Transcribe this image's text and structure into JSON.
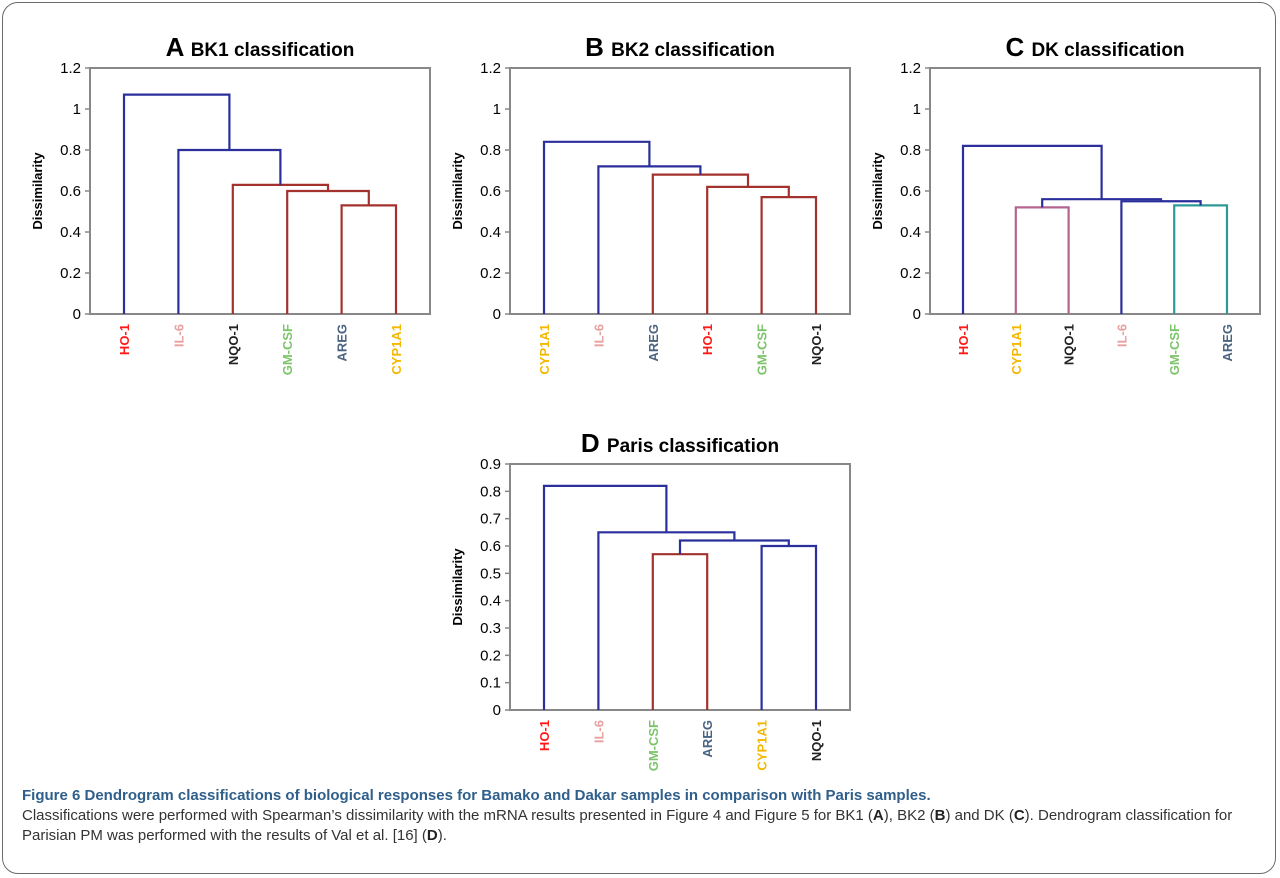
{
  "colors": {
    "blue": "#2b2f9b",
    "red": "#a3322e",
    "pink": "#b5648f",
    "teal": "#2e9a98",
    "HO-1": "#ff1a1a",
    "IL-6": "#e8a0a0",
    "NQO-1": "#222222",
    "GM-CSF": "#7cc46a",
    "AREG": "#4a6380",
    "CYP1A1": "#f5b800"
  },
  "chart_data": [
    {
      "type": "dendrogram",
      "letter": "A",
      "title": "BK1 classification",
      "ylabel": "Dissimilarity",
      "ylim": [
        0,
        1.2
      ],
      "yticks": [
        {
          "value": 0,
          "label": "0"
        },
        {
          "value": 0.2,
          "label": "0.2"
        },
        {
          "value": 0.4,
          "label": "0.4"
        },
        {
          "value": 0.6,
          "label": "0.6"
        },
        {
          "value": 0.8,
          "label": "0.8"
        },
        {
          "value": 1,
          "label": "1"
        },
        {
          "value": 1.2,
          "label": "1.2"
        }
      ],
      "leaves": [
        "HO-1",
        "IL-6",
        "NQO-1",
        "GM-CSF",
        "AREG",
        "CYP1A1"
      ],
      "merges": [
        {
          "left": 4,
          "right": 5,
          "height": 0.53,
          "color": "red"
        },
        {
          "left": 3,
          "right": 6,
          "height": 0.6,
          "color": "red"
        },
        {
          "left": 2,
          "right": 7,
          "height": 0.63,
          "color": "red"
        },
        {
          "left": 1,
          "right": 8,
          "height": 0.8,
          "color": "blue"
        },
        {
          "left": 0,
          "right": 9,
          "height": 1.07,
          "color": "blue"
        }
      ]
    },
    {
      "type": "dendrogram",
      "letter": "B",
      "title": "BK2 classification",
      "ylabel": "Dissimilarity",
      "ylim": [
        0,
        1.2
      ],
      "yticks": [
        {
          "value": 0,
          "label": "0"
        },
        {
          "value": 0.2,
          "label": "0.2"
        },
        {
          "value": 0.4,
          "label": "0.4"
        },
        {
          "value": 0.6,
          "label": "0.6"
        },
        {
          "value": 0.8,
          "label": "0.8"
        },
        {
          "value": 1,
          "label": "1"
        },
        {
          "value": 1.2,
          "label": "1.2"
        }
      ],
      "leaves": [
        "CYP1A1",
        "IL-6",
        "AREG",
        "HO-1",
        "GM-CSF",
        "NQO-1"
      ],
      "merges": [
        {
          "left": 4,
          "right": 5,
          "height": 0.57,
          "color": "red"
        },
        {
          "left": 3,
          "right": 6,
          "height": 0.62,
          "color": "red"
        },
        {
          "left": 2,
          "right": 7,
          "height": 0.68,
          "color": "red"
        },
        {
          "left": 1,
          "right": 8,
          "height": 0.72,
          "color": "blue"
        },
        {
          "left": 0,
          "right": 9,
          "height": 0.84,
          "color": "blue"
        }
      ]
    },
    {
      "type": "dendrogram",
      "letter": "C",
      "title": "DK classification",
      "ylabel": "Dissimilarity",
      "ylim": [
        0,
        1.2
      ],
      "yticks": [
        {
          "value": 0,
          "label": "0"
        },
        {
          "value": 0.2,
          "label": "0.2"
        },
        {
          "value": 0.4,
          "label": "0.4"
        },
        {
          "value": 0.6,
          "label": "0.6"
        },
        {
          "value": 0.8,
          "label": "0.8"
        },
        {
          "value": 1,
          "label": "1"
        },
        {
          "value": 1.2,
          "label": "1.2"
        }
      ],
      "leaves": [
        "HO-1",
        "CYP1A1",
        "NQO-1",
        "IL-6",
        "GM-CSF",
        "AREG"
      ],
      "merges": [
        {
          "left": 1,
          "right": 2,
          "height": 0.52,
          "color": "pink"
        },
        {
          "left": 4,
          "right": 5,
          "height": 0.53,
          "color": "teal"
        },
        {
          "left": 3,
          "right": 7,
          "height": 0.55,
          "color": "blue"
        },
        {
          "left": 6,
          "right": 8,
          "height": 0.56,
          "color": "blue"
        },
        {
          "left": 0,
          "right": 9,
          "height": 0.82,
          "color": "blue"
        }
      ]
    },
    {
      "type": "dendrogram",
      "letter": "D",
      "title": "Paris classification",
      "ylabel": "Dissimilarity",
      "ylim": [
        0,
        0.9
      ],
      "yticks": [
        {
          "value": 0,
          "label": "0"
        },
        {
          "value": 0.1,
          "label": "0.1"
        },
        {
          "value": 0.2,
          "label": "0.2"
        },
        {
          "value": 0.3,
          "label": "0.3"
        },
        {
          "value": 0.4,
          "label": "0.4"
        },
        {
          "value": 0.5,
          "label": "0.5"
        },
        {
          "value": 0.6,
          "label": "0.6"
        },
        {
          "value": 0.7,
          "label": "0.7"
        },
        {
          "value": 0.8,
          "label": "0.8"
        },
        {
          "value": 0.9,
          "label": "0.9"
        }
      ],
      "leaves": [
        "HO-1",
        "IL-6",
        "GM-CSF",
        "AREG",
        "CYP1A1",
        "NQO-1"
      ],
      "merges": [
        {
          "left": 2,
          "right": 3,
          "height": 0.57,
          "color": "red"
        },
        {
          "left": 4,
          "right": 5,
          "height": 0.6,
          "color": "blue"
        },
        {
          "left": 6,
          "right": 7,
          "height": 0.62,
          "color": "blue"
        },
        {
          "left": 1,
          "right": 8,
          "height": 0.65,
          "color": "blue"
        },
        {
          "left": 0,
          "right": 9,
          "height": 0.82,
          "color": "blue"
        }
      ]
    }
  ],
  "caption": {
    "heading": "Figure 6 Dendrogram classifications of biological responses for Bamako and Dakar samples in comparison with Paris samples.",
    "t1": "Classifications were performed with Spearman’s dissimilarity with the mRNA results presented in Figure 4 and Figure 5 for BK1 (",
    "b1": "A",
    "t2": "), BK2 (",
    "b2": "B",
    "t3": ") and DK (",
    "b3": "C",
    "t4": "). Dendrogram classification for Parisian PM was performed with the results of Val et al. [16] (",
    "b4": "D",
    "t5": ")."
  }
}
